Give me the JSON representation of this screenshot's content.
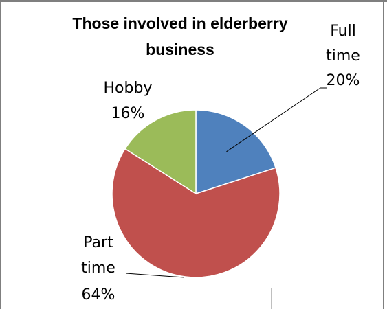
{
  "chart_data": {
    "type": "pie",
    "title_lines": [
      "Those involved in elderberry",
      "business"
    ],
    "slices": [
      {
        "name": "Full time",
        "value": 20,
        "value_label": "20%",
        "label_lines": [
          "Full",
          "time",
          "20%"
        ],
        "color": "#4F81BD"
      },
      {
        "name": "Part time",
        "value": 64,
        "value_label": "64%",
        "label_lines": [
          "Part",
          "time",
          "64%"
        ],
        "color": "#C0504D"
      },
      {
        "name": "Hobby",
        "value": 16,
        "value_label": "16%",
        "label_lines": [
          "Hobby",
          "16%"
        ],
        "color": "#9BBB59"
      }
    ],
    "legend": "none"
  },
  "colors": {
    "frame_border": "#7f7f7f",
    "slice_edge": "#ffffff"
  }
}
